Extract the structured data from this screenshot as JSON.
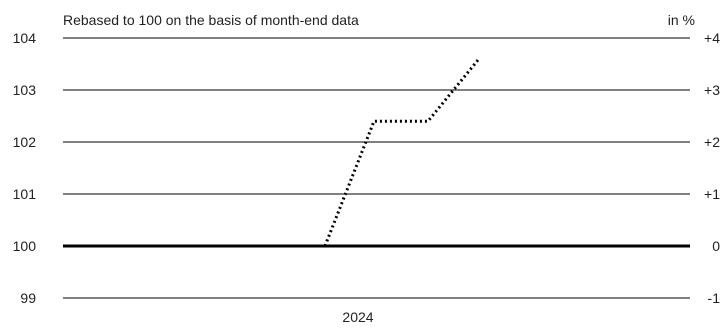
{
  "chart_data": {
    "type": "line",
    "title": "Rebased to 100 on the basis of month-end data",
    "right_axis_title": "in %",
    "xlabel": "",
    "ylabel": "",
    "ylim": [
      99,
      104
    ],
    "y_ticks_left": [
      "104",
      "103",
      "102",
      "101",
      "100",
      "99"
    ],
    "y_tick_values": [
      104,
      103,
      102,
      101,
      100,
      99
    ],
    "y_ticks_right": [
      "+4",
      "+3",
      "+2",
      "+1",
      "0",
      "-1"
    ],
    "baseline": 100,
    "x_tick_labels": [
      "2024"
    ],
    "grid": true,
    "series": [
      {
        "line_style": "dotted",
        "x": [
          "2023-12",
          "2024-01",
          "2024-02",
          "2024-03"
        ],
        "values": [
          100.0,
          102.4,
          102.4,
          103.6
        ]
      }
    ]
  },
  "colors": {
    "series_line": "#000000",
    "grid": "#000000",
    "baseline": "#000000",
    "text": "#222222"
  }
}
